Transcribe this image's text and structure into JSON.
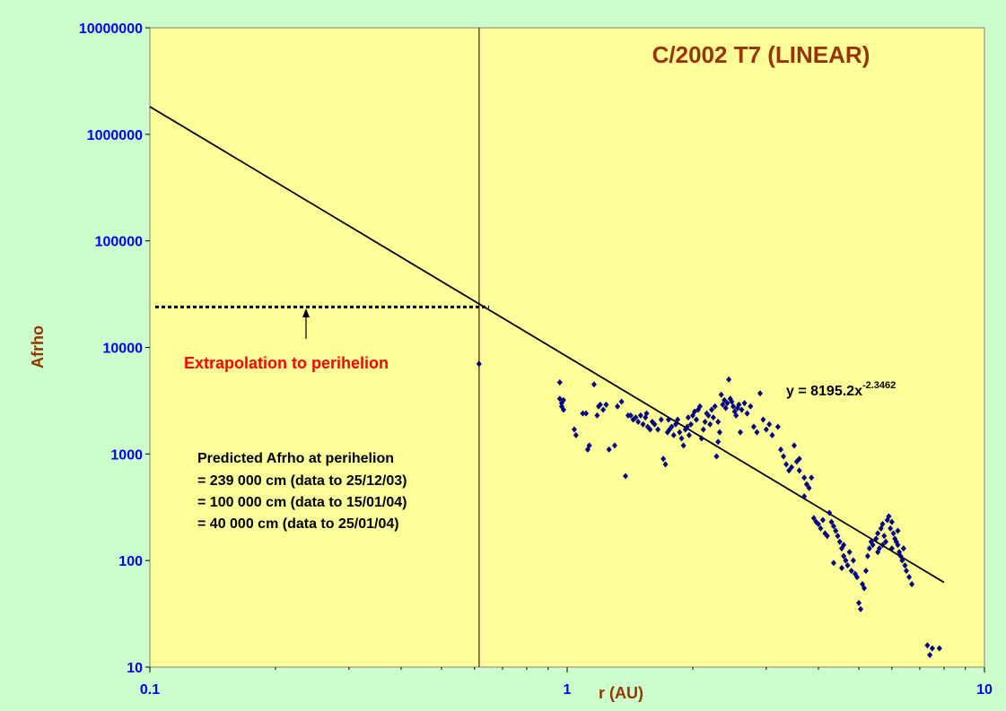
{
  "chart_data": {
    "type": "scatter",
    "title": "C/2002 T7 (LINEAR)",
    "xlabel": "r (AU)",
    "ylabel": "Afrho",
    "xscale": "log",
    "yscale": "log",
    "xlim": [
      0.1,
      10
    ],
    "ylim": [
      10,
      10000000
    ],
    "x_ticks": [
      "0.1",
      "1",
      "10"
    ],
    "y_ticks": [
      "10",
      "100",
      "1000",
      "10000",
      "100000",
      "1000000",
      "10000000"
    ],
    "grid": false,
    "colors": {
      "background": "#ccffcc",
      "plot_area": "#ffff99",
      "points": "#000080",
      "trendline": "#000000",
      "perihelion_line": "#993333",
      "tick_labels": "#0000ff",
      "titles": "#993300",
      "annotation": "#ff0000"
    },
    "trendline": {
      "equation_prefix": "y = 8195.2x",
      "equation_exponent": "-2.3462",
      "coefficient": 8195.2,
      "exponent": -2.3462,
      "x_range": [
        0.1,
        8.0
      ]
    },
    "perihelion_line_x": 0.615,
    "extrapolation_level_y": 24000,
    "extrapolation_x_range": [
      0.1,
      0.65
    ],
    "annotations": {
      "extrapolation": "Extrapolation to perihelion",
      "predicted_title": "Predicted Afrho at perihelion",
      "predicted_lines": [
        "= 239 000 cm (data to 25/12/03)",
        "= 100 000 cm (data to 15/01/04)",
        "= 40 000 cm (data to 25/01/04)"
      ]
    },
    "series": [
      {
        "points": [
          [
            0.615,
            7000
          ],
          [
            0.96,
            4700
          ],
          [
            0.96,
            3300
          ],
          [
            0.97,
            3000
          ],
          [
            0.97,
            2800
          ],
          [
            0.98,
            2600
          ],
          [
            0.98,
            3200
          ],
          [
            1.04,
            1700
          ],
          [
            1.05,
            1500
          ],
          [
            1.09,
            2400
          ],
          [
            1.11,
            2400
          ],
          [
            1.12,
            1100
          ],
          [
            1.13,
            1200
          ],
          [
            1.16,
            4500
          ],
          [
            1.18,
            2300
          ],
          [
            1.19,
            2800
          ],
          [
            1.2,
            2900
          ],
          [
            1.22,
            2600
          ],
          [
            1.24,
            2900
          ],
          [
            1.26,
            1100
          ],
          [
            1.3,
            1200
          ],
          [
            1.32,
            2800
          ],
          [
            1.35,
            3100
          ],
          [
            1.38,
            620
          ],
          [
            1.42,
            2300
          ],
          [
            1.44,
            2100
          ],
          [
            1.46,
            2200
          ],
          [
            1.48,
            2000
          ],
          [
            1.5,
            2300
          ],
          [
            1.52,
            1900
          ],
          [
            1.54,
            2200
          ],
          [
            1.56,
            1800
          ],
          [
            1.58,
            1700
          ],
          [
            1.6,
            2000
          ],
          [
            1.62,
            1900
          ],
          [
            1.65,
            1700
          ],
          [
            1.68,
            2100
          ],
          [
            1.7,
            900
          ],
          [
            1.72,
            800
          ],
          [
            1.74,
            1600
          ],
          [
            1.76,
            1700
          ],
          [
            1.78,
            1800
          ],
          [
            1.8,
            1500
          ],
          [
            1.82,
            1900
          ],
          [
            1.84,
            2100
          ],
          [
            1.86,
            1600
          ],
          [
            1.88,
            1400
          ],
          [
            1.9,
            1200
          ],
          [
            1.92,
            1700
          ],
          [
            1.94,
            1800
          ],
          [
            1.96,
            1500
          ],
          [
            1.98,
            1900
          ],
          [
            2.0,
            2300
          ],
          [
            2.02,
            2500
          ],
          [
            2.04,
            2100
          ],
          [
            2.06,
            2600
          ],
          [
            2.08,
            2800
          ],
          [
            2.1,
            1400
          ],
          [
            2.12,
            1700
          ],
          [
            2.14,
            2000
          ],
          [
            2.16,
            2400
          ],
          [
            2.18,
            2300
          ],
          [
            2.2,
            1900
          ],
          [
            2.22,
            2600
          ],
          [
            2.24,
            2200
          ],
          [
            2.26,
            2800
          ],
          [
            2.28,
            950
          ],
          [
            2.3,
            1300
          ],
          [
            2.32,
            1600
          ],
          [
            2.34,
            3600
          ],
          [
            2.36,
            2900
          ],
          [
            2.38,
            3200
          ],
          [
            2.4,
            2700
          ],
          [
            2.42,
            3000
          ],
          [
            2.44,
            5000
          ],
          [
            2.46,
            3300
          ],
          [
            2.48,
            3100
          ],
          [
            2.5,
            2800
          ],
          [
            2.52,
            2500
          ],
          [
            2.54,
            2300
          ],
          [
            2.56,
            2700
          ],
          [
            2.58,
            2900
          ],
          [
            2.62,
            2600
          ],
          [
            2.66,
            3000
          ],
          [
            2.7,
            2400
          ],
          [
            2.75,
            2800
          ],
          [
            2.8,
            1800
          ],
          [
            2.85,
            1600
          ],
          [
            2.9,
            3700
          ],
          [
            2.95,
            2100
          ],
          [
            3.0,
            1700
          ],
          [
            3.05,
            1900
          ],
          [
            3.1,
            1500
          ],
          [
            3.2,
            1800
          ],
          [
            3.25,
            1100
          ],
          [
            3.3,
            950
          ],
          [
            3.35,
            800
          ],
          [
            3.4,
            700
          ],
          [
            3.45,
            750
          ],
          [
            3.5,
            1200
          ],
          [
            3.55,
            850
          ],
          [
            3.6,
            700
          ],
          [
            3.7,
            600
          ],
          [
            3.75,
            520
          ],
          [
            3.8,
            480
          ],
          [
            3.85,
            600
          ],
          [
            3.7,
            400
          ],
          [
            3.9,
            250
          ],
          [
            3.95,
            230
          ],
          [
            4.0,
            220
          ],
          [
            4.05,
            200
          ],
          [
            4.1,
            240
          ],
          [
            4.15,
            180
          ],
          [
            4.2,
            170
          ],
          [
            4.25,
            280
          ],
          [
            4.3,
            230
          ],
          [
            4.35,
            210
          ],
          [
            4.4,
            190
          ],
          [
            4.45,
            170
          ],
          [
            4.5,
            150
          ],
          [
            4.55,
            130
          ],
          [
            4.6,
            110
          ],
          [
            4.65,
            100
          ],
          [
            4.7,
            90
          ],
          [
            4.75,
            120
          ],
          [
            4.8,
            80
          ],
          [
            4.85,
            100
          ],
          [
            4.9,
            75
          ],
          [
            4.95,
            70
          ],
          [
            5.0,
            40
          ],
          [
            5.05,
            35
          ],
          [
            5.1,
            60
          ],
          [
            5.15,
            55
          ],
          [
            5.2,
            80
          ],
          [
            5.25,
            110
          ],
          [
            5.3,
            130
          ],
          [
            5.35,
            150
          ],
          [
            5.4,
            140
          ],
          [
            5.5,
            160
          ],
          [
            5.55,
            180
          ],
          [
            5.6,
            130
          ],
          [
            5.65,
            200
          ],
          [
            5.7,
            220
          ],
          [
            5.75,
            170
          ],
          [
            5.8,
            150
          ],
          [
            5.85,
            240
          ],
          [
            5.9,
            260
          ],
          [
            5.95,
            200
          ],
          [
            6.0,
            230
          ],
          [
            6.05,
            180
          ],
          [
            6.1,
            160
          ],
          [
            6.15,
            150
          ],
          [
            6.2,
            140
          ],
          [
            6.25,
            120
          ],
          [
            6.3,
            110
          ],
          [
            6.35,
            100
          ],
          [
            6.4,
            130
          ],
          [
            6.45,
            90
          ],
          [
            6.5,
            80
          ],
          [
            6.6,
            70
          ],
          [
            6.7,
            60
          ],
          [
            7.3,
            16
          ],
          [
            7.4,
            13
          ],
          [
            7.5,
            15
          ],
          [
            7.8,
            15
          ],
          [
            5.55,
            120
          ],
          [
            5.7,
            140
          ],
          [
            6.0,
            130
          ],
          [
            6.2,
            190
          ],
          [
            4.35,
            95
          ],
          [
            4.55,
            85
          ],
          [
            4.6,
            140
          ],
          [
            3.6,
            900
          ],
          [
            2.6,
            1600
          ],
          [
            2.3,
            2000
          ],
          [
            1.95,
            2200
          ],
          [
            1.75,
            2100
          ],
          [
            1.55,
            2400
          ],
          [
            1.4,
            2300
          ]
        ]
      }
    ]
  }
}
